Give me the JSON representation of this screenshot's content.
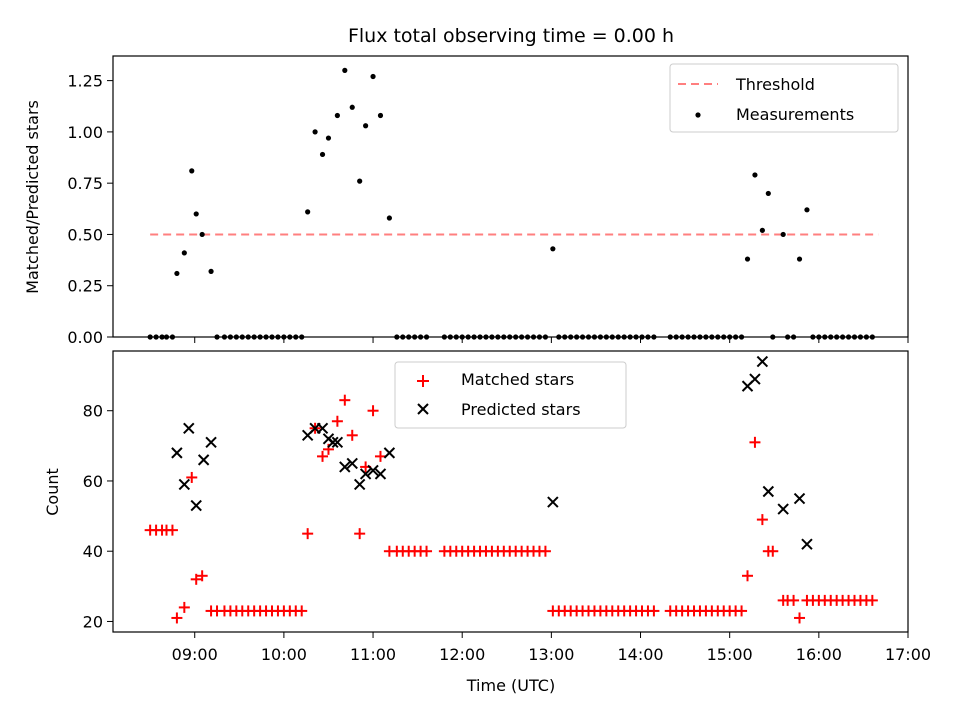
{
  "chart_data": [
    {
      "type": "scatter",
      "title": "Flux total observing time = 0.00 h",
      "xlabel": "",
      "ylabel": "Matched/Predicted stars",
      "xlim": [
        "08:05",
        "17:00"
      ],
      "ylim": [
        0,
        1.37
      ],
      "yticks": [
        0.0,
        0.25,
        0.5,
        0.75,
        1.0,
        1.25
      ],
      "ytick_labels": [
        "0.00",
        "0.25",
        "0.50",
        "0.75",
        "1.00",
        "1.25"
      ],
      "legend_position": "upper right",
      "legend": [
        {
          "label": "Threshold",
          "marker": "dashed-line",
          "color": "#ff7f7f"
        },
        {
          "label": "Measurements",
          "marker": "dot",
          "color": "#000000"
        }
      ],
      "threshold": {
        "name": "Threshold",
        "value": 0.5,
        "x_range": [
          "08:30",
          "16:40"
        ],
        "color": "#ff7f7f"
      },
      "series": [
        {
          "name": "Measurements",
          "color": "#000000",
          "points": [
            [
              "08:30",
              0
            ],
            [
              "08:34",
              0
            ],
            [
              "08:38",
              0
            ],
            [
              "08:41",
              0
            ],
            [
              "08:45",
              0
            ],
            [
              "08:48",
              0.31
            ],
            [
              "08:53",
              0.41
            ],
            [
              "08:58",
              0.81
            ],
            [
              "09:01",
              0.6
            ],
            [
              "09:05",
              0.5
            ],
            [
              "09:11",
              0.32
            ],
            [
              "09:15",
              0
            ],
            [
              "09:20",
              0
            ],
            [
              "09:24",
              0
            ],
            [
              "09:28",
              0
            ],
            [
              "09:32",
              0
            ],
            [
              "09:36",
              0
            ],
            [
              "09:40",
              0
            ],
            [
              "09:44",
              0
            ],
            [
              "09:48",
              0
            ],
            [
              "09:52",
              0
            ],
            [
              "09:56",
              0
            ],
            [
              "10:00",
              0
            ],
            [
              "10:04",
              0
            ],
            [
              "10:08",
              0
            ],
            [
              "10:12",
              0
            ],
            [
              "10:16",
              0.61
            ],
            [
              "10:21",
              1.0
            ],
            [
              "10:26",
              0.89
            ],
            [
              "10:30",
              0.97
            ],
            [
              "10:36",
              1.08
            ],
            [
              "10:41",
              1.3
            ],
            [
              "10:46",
              1.12
            ],
            [
              "10:51",
              0.76
            ],
            [
              "10:55",
              1.03
            ],
            [
              "11:00",
              1.27
            ],
            [
              "11:05",
              1.08
            ],
            [
              "11:11",
              0.58
            ],
            [
              "11:16",
              0
            ],
            [
              "11:20",
              0
            ],
            [
              "11:24",
              0
            ],
            [
              "11:28",
              0
            ],
            [
              "11:32",
              0
            ],
            [
              "11:36",
              0
            ],
            [
              "11:48",
              0
            ],
            [
              "11:52",
              0
            ],
            [
              "11:56",
              0
            ],
            [
              "12:00",
              0
            ],
            [
              "12:04",
              0
            ],
            [
              "12:08",
              0
            ],
            [
              "12:12",
              0
            ],
            [
              "12:16",
              0
            ],
            [
              "12:20",
              0
            ],
            [
              "12:24",
              0
            ],
            [
              "12:28",
              0
            ],
            [
              "12:32",
              0
            ],
            [
              "12:36",
              0
            ],
            [
              "12:40",
              0
            ],
            [
              "12:44",
              0
            ],
            [
              "12:48",
              0
            ],
            [
              "12:52",
              0
            ],
            [
              "12:56",
              0
            ],
            [
              "13:01",
              0.43
            ],
            [
              "13:05",
              0
            ],
            [
              "13:09",
              0
            ],
            [
              "13:13",
              0
            ],
            [
              "13:17",
              0
            ],
            [
              "13:21",
              0
            ],
            [
              "13:25",
              0
            ],
            [
              "13:29",
              0
            ],
            [
              "13:33",
              0
            ],
            [
              "13:37",
              0
            ],
            [
              "13:41",
              0
            ],
            [
              "13:45",
              0
            ],
            [
              "13:49",
              0
            ],
            [
              "13:53",
              0
            ],
            [
              "13:57",
              0
            ],
            [
              "14:01",
              0
            ],
            [
              "14:05",
              0
            ],
            [
              "14:09",
              0
            ],
            [
              "14:20",
              0
            ],
            [
              "14:24",
              0
            ],
            [
              "14:28",
              0
            ],
            [
              "14:32",
              0
            ],
            [
              "14:36",
              0
            ],
            [
              "14:40",
              0
            ],
            [
              "14:44",
              0
            ],
            [
              "14:48",
              0
            ],
            [
              "14:52",
              0
            ],
            [
              "14:56",
              0
            ],
            [
              "15:00",
              0
            ],
            [
              "15:04",
              0
            ],
            [
              "15:08",
              0
            ],
            [
              "15:12",
              0.38
            ],
            [
              "15:17",
              0.79
            ],
            [
              "15:22",
              0.52
            ],
            [
              "15:26",
              0.7
            ],
            [
              "15:29",
              0
            ],
            [
              "15:36",
              0.5
            ],
            [
              "15:39",
              0
            ],
            [
              "15:43",
              0
            ],
            [
              "15:47",
              0.38
            ],
            [
              "15:52",
              0.62
            ],
            [
              "15:56",
              0
            ],
            [
              "16:00",
              0
            ],
            [
              "16:04",
              0
            ],
            [
              "16:08",
              0
            ],
            [
              "16:12",
              0
            ],
            [
              "16:16",
              0
            ],
            [
              "16:20",
              0
            ],
            [
              "16:24",
              0
            ],
            [
              "16:28",
              0
            ],
            [
              "16:32",
              0
            ],
            [
              "16:36",
              0
            ]
          ]
        }
      ]
    },
    {
      "type": "scatter",
      "title": "",
      "xlabel": "Time (UTC)",
      "ylabel": "Count",
      "xlim": [
        "08:05",
        "17:00"
      ],
      "ylim": [
        17,
        97
      ],
      "xticks": [
        "09:00",
        "10:00",
        "11:00",
        "12:00",
        "13:00",
        "14:00",
        "15:00",
        "16:00",
        "17:00"
      ],
      "yticks": [
        20,
        40,
        60,
        80
      ],
      "legend_position": "upper center",
      "legend": [
        {
          "label": "Matched stars",
          "marker": "+",
          "color": "#ff0000"
        },
        {
          "label": "Predicted stars",
          "marker": "x",
          "color": "#000000"
        }
      ],
      "series": [
        {
          "name": "Matched stars",
          "marker": "+",
          "color": "#ff0000",
          "points": [
            [
              "08:30",
              46
            ],
            [
              "08:34",
              46
            ],
            [
              "08:38",
              46
            ],
            [
              "08:41",
              46
            ],
            [
              "08:45",
              46
            ],
            [
              "08:48",
              21
            ],
            [
              "08:53",
              24
            ],
            [
              "08:58",
              61
            ],
            [
              "09:01",
              32
            ],
            [
              "09:05",
              33
            ],
            [
              "09:11",
              23
            ],
            [
              "09:15",
              23
            ],
            [
              "09:20",
              23
            ],
            [
              "09:24",
              23
            ],
            [
              "09:28",
              23
            ],
            [
              "09:32",
              23
            ],
            [
              "09:36",
              23
            ],
            [
              "09:40",
              23
            ],
            [
              "09:44",
              23
            ],
            [
              "09:48",
              23
            ],
            [
              "09:52",
              23
            ],
            [
              "09:56",
              23
            ],
            [
              "10:00",
              23
            ],
            [
              "10:04",
              23
            ],
            [
              "10:08",
              23
            ],
            [
              "10:12",
              23
            ],
            [
              "10:16",
              45
            ],
            [
              "10:21",
              75
            ],
            [
              "10:26",
              67
            ],
            [
              "10:30",
              69
            ],
            [
              "10:36",
              77
            ],
            [
              "10:41",
              83
            ],
            [
              "10:46",
              73
            ],
            [
              "10:51",
              45
            ],
            [
              "10:55",
              64
            ],
            [
              "11:00",
              80
            ],
            [
              "11:05",
              67
            ],
            [
              "11:11",
              40
            ],
            [
              "11:16",
              40
            ],
            [
              "11:20",
              40
            ],
            [
              "11:24",
              40
            ],
            [
              "11:28",
              40
            ],
            [
              "11:32",
              40
            ],
            [
              "11:36",
              40
            ],
            [
              "11:48",
              40
            ],
            [
              "11:52",
              40
            ],
            [
              "11:56",
              40
            ],
            [
              "12:00",
              40
            ],
            [
              "12:04",
              40
            ],
            [
              "12:08",
              40
            ],
            [
              "12:12",
              40
            ],
            [
              "12:16",
              40
            ],
            [
              "12:20",
              40
            ],
            [
              "12:24",
              40
            ],
            [
              "12:28",
              40
            ],
            [
              "12:32",
              40
            ],
            [
              "12:36",
              40
            ],
            [
              "12:40",
              40
            ],
            [
              "12:44",
              40
            ],
            [
              "12:48",
              40
            ],
            [
              "12:52",
              40
            ],
            [
              "12:56",
              40
            ],
            [
              "13:01",
              23
            ],
            [
              "13:05",
              23
            ],
            [
              "13:09",
              23
            ],
            [
              "13:13",
              23
            ],
            [
              "13:17",
              23
            ],
            [
              "13:21",
              23
            ],
            [
              "13:25",
              23
            ],
            [
              "13:29",
              23
            ],
            [
              "13:33",
              23
            ],
            [
              "13:37",
              23
            ],
            [
              "13:41",
              23
            ],
            [
              "13:45",
              23
            ],
            [
              "13:49",
              23
            ],
            [
              "13:53",
              23
            ],
            [
              "13:57",
              23
            ],
            [
              "14:01",
              23
            ],
            [
              "14:05",
              23
            ],
            [
              "14:09",
              23
            ],
            [
              "14:20",
              23
            ],
            [
              "14:24",
              23
            ],
            [
              "14:28",
              23
            ],
            [
              "14:32",
              23
            ],
            [
              "14:36",
              23
            ],
            [
              "14:40",
              23
            ],
            [
              "14:44",
              23
            ],
            [
              "14:48",
              23
            ],
            [
              "14:52",
              23
            ],
            [
              "14:56",
              23
            ],
            [
              "15:00",
              23
            ],
            [
              "15:04",
              23
            ],
            [
              "15:08",
              23
            ],
            [
              "15:12",
              33
            ],
            [
              "15:17",
              71
            ],
            [
              "15:22",
              49
            ],
            [
              "15:26",
              40
            ],
            [
              "15:29",
              40
            ],
            [
              "15:36",
              26
            ],
            [
              "15:39",
              26
            ],
            [
              "15:43",
              26
            ],
            [
              "15:47",
              21
            ],
            [
              "15:52",
              26
            ],
            [
              "15:56",
              26
            ],
            [
              "16:00",
              26
            ],
            [
              "16:04",
              26
            ],
            [
              "16:08",
              26
            ],
            [
              "16:12",
              26
            ],
            [
              "16:16",
              26
            ],
            [
              "16:20",
              26
            ],
            [
              "16:24",
              26
            ],
            [
              "16:28",
              26
            ],
            [
              "16:32",
              26
            ],
            [
              "16:36",
              26
            ]
          ]
        },
        {
          "name": "Predicted stars",
          "marker": "x",
          "color": "#000000",
          "points": [
            [
              "08:48",
              68
            ],
            [
              "08:53",
              59
            ],
            [
              "08:56",
              75
            ],
            [
              "09:01",
              53
            ],
            [
              "09:06",
              66
            ],
            [
              "09:11",
              71
            ],
            [
              "10:16",
              73
            ],
            [
              "10:21",
              75
            ],
            [
              "10:26",
              75
            ],
            [
              "10:30",
              72
            ],
            [
              "10:33",
              71
            ],
            [
              "10:36",
              71
            ],
            [
              "10:41",
              64
            ],
            [
              "10:46",
              65
            ],
            [
              "10:51",
              59
            ],
            [
              "10:55",
              62
            ],
            [
              "11:00",
              63
            ],
            [
              "11:05",
              62
            ],
            [
              "11:11",
              68
            ],
            [
              "13:01",
              54
            ],
            [
              "15:12",
              87
            ],
            [
              "15:17",
              89
            ],
            [
              "15:22",
              94
            ],
            [
              "15:26",
              57
            ],
            [
              "15:36",
              52
            ],
            [
              "15:47",
              55
            ],
            [
              "15:52",
              42
            ]
          ]
        }
      ]
    }
  ]
}
